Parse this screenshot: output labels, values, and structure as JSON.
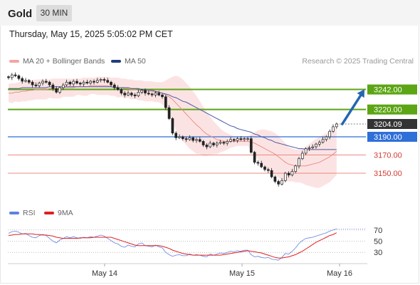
{
  "header": {
    "symbol": "Gold",
    "interval": "30 MIN",
    "datetime": "Thursday, May 15, 2025 5:05:02 PM CET"
  },
  "legend": {
    "ma20": "MA 20 + Bollinger Bands",
    "ma50": "MA 50",
    "credit": "Research © 2025 Trading Central",
    "rsi": "RSI",
    "rsi_ma": "9MA"
  },
  "colors": {
    "up_candle": "#ffffff",
    "down_candle": "#222222",
    "ma20": "#e8908a",
    "bollinger_fill": "#fbdcdc",
    "ma50": "#4a5aa8",
    "resistance": "#5ca514",
    "support": "#e87c72",
    "pivot": "#2f6fd8",
    "last_price": "#333333",
    "arrow": "#2466b0",
    "rsi": "#6080e0",
    "rsi_ma": "#e02020"
  },
  "chart_data": [
    {
      "type": "candlestick",
      "ylim": [
        3118,
        3262
      ],
      "x_tick_labels": [
        "May 14",
        "May 15",
        "May 16"
      ],
      "last_price": 3204.09,
      "levels": [
        {
          "label": "3242.00",
          "value": 3242.0,
          "kind": "resistance"
        },
        {
          "label": "3220.00",
          "value": 3220.0,
          "kind": "resistance"
        },
        {
          "label": "3204.09",
          "value": 3204.09,
          "kind": "last"
        },
        {
          "label": "3190.00",
          "value": 3190.0,
          "kind": "pivot"
        },
        {
          "label": "3170.00",
          "value": 3170.0,
          "kind": "support"
        },
        {
          "label": "3150.00",
          "value": 3150.0,
          "kind": "support"
        }
      ],
      "forecast_arrow": {
        "from": 3204,
        "to": 3242
      },
      "closes": [
        3255,
        3258,
        3257,
        3254,
        3251,
        3252,
        3250,
        3247,
        3246,
        3249,
        3251,
        3250,
        3247,
        3243,
        3239,
        3244,
        3247,
        3250,
        3248,
        3251,
        3249,
        3248,
        3250,
        3249,
        3251,
        3250,
        3252,
        3253,
        3252,
        3250,
        3247,
        3244,
        3242,
        3238,
        3236,
        3238,
        3236,
        3235,
        3239,
        3241,
        3238,
        3237,
        3236,
        3238,
        3236,
        3234,
        3222,
        3210,
        3194,
        3189,
        3190,
        3188,
        3187,
        3189,
        3186,
        3187,
        3185,
        3181,
        3179,
        3183,
        3181,
        3183,
        3184,
        3183,
        3185,
        3187,
        3186,
        3188,
        3187,
        3188,
        3188,
        3173,
        3162,
        3161,
        3157,
        3154,
        3153,
        3146,
        3141,
        3138,
        3142,
        3150,
        3148,
        3152,
        3158,
        3166,
        3172,
        3177,
        3178,
        3179,
        3182,
        3184,
        3187,
        3190,
        3196,
        3201,
        3204.09
      ],
      "ma20": [
        3238,
        3238,
        3239,
        3239,
        3240,
        3240,
        3241,
        3241,
        3242,
        3242,
        3242,
        3242,
        3243,
        3243,
        3243,
        3243,
        3244,
        3244,
        3244,
        3244,
        3245,
        3245,
        3245,
        3245,
        3246,
        3246,
        3246,
        3246,
        3246,
        3246,
        3245,
        3245,
        3244,
        3244,
        3243,
        3243,
        3242,
        3242,
        3241,
        3241,
        3240,
        3240,
        3240,
        3239,
        3239,
        3238,
        3236,
        3234,
        3231,
        3227,
        3223,
        3219,
        3215,
        3211,
        3207,
        3203,
        3200,
        3196,
        3193,
        3191,
        3189,
        3187,
        3186,
        3185,
        3185,
        3185,
        3185,
        3185,
        3185,
        3185,
        3185,
        3184,
        3183,
        3181,
        3179,
        3177,
        3175,
        3173,
        3171,
        3168,
        3165,
        3162,
        3160,
        3159,
        3158,
        3158,
        3158,
        3158,
        3159,
        3160,
        3161,
        3162,
        3164,
        3166,
        3168,
        3171,
        3174
      ],
      "bb_upper": [
        3248,
        3249,
        3249,
        3250,
        3251,
        3251,
        3252,
        3252,
        3253,
        3253,
        3253,
        3253,
        3253,
        3254,
        3254,
        3254,
        3254,
        3254,
        3254,
        3254,
        3254,
        3254,
        3255,
        3255,
        3255,
        3255,
        3256,
        3256,
        3256,
        3256,
        3255,
        3255,
        3255,
        3254,
        3254,
        3253,
        3253,
        3252,
        3252,
        3252,
        3251,
        3251,
        3251,
        3250,
        3250,
        3250,
        3252,
        3254,
        3256,
        3257,
        3256,
        3253,
        3249,
        3245,
        3240,
        3235,
        3229,
        3223,
        3217,
        3212,
        3207,
        3203,
        3199,
        3196,
        3194,
        3192,
        3191,
        3190,
        3190,
        3190,
        3190,
        3193,
        3195,
        3197,
        3198,
        3198,
        3197,
        3196,
        3194,
        3191,
        3187,
        3183,
        3179,
        3177,
        3176,
        3176,
        3177,
        3179,
        3182,
        3185,
        3188,
        3190,
        3192,
        3194,
        3196,
        3198,
        3200
      ],
      "bb_lower": [
        3228,
        3227,
        3229,
        3228,
        3229,
        3229,
        3230,
        3230,
        3231,
        3231,
        3231,
        3231,
        3233,
        3232,
        3232,
        3232,
        3234,
        3234,
        3234,
        3234,
        3236,
        3236,
        3235,
        3235,
        3237,
        3237,
        3236,
        3236,
        3236,
        3236,
        3235,
        3235,
        3233,
        3234,
        3232,
        3233,
        3231,
        3232,
        3230,
        3230,
        3229,
        3229,
        3229,
        3228,
        3228,
        3226,
        3220,
        3214,
        3206,
        3197,
        3190,
        3185,
        3181,
        3177,
        3174,
        3171,
        3171,
        3169,
        3169,
        3170,
        3171,
        3171,
        3173,
        3174,
        3176,
        3178,
        3179,
        3180,
        3180,
        3180,
        3180,
        3175,
        3171,
        3165,
        3160,
        3156,
        3153,
        3150,
        3148,
        3145,
        3143,
        3141,
        3141,
        3141,
        3140,
        3140,
        3139,
        3137,
        3136,
        3135,
        3134,
        3134,
        3136,
        3138,
        3140,
        3144,
        3148
      ],
      "ma50": [
        3243,
        3243,
        3243,
        3243,
        3244,
        3244,
        3244,
        3244,
        3244,
        3244,
        3244,
        3244,
        3245,
        3245,
        3245,
        3245,
        3245,
        3245,
        3245,
        3245,
        3245,
        3245,
        3245,
        3245,
        3245,
        3245,
        3245,
        3245,
        3245,
        3245,
        3245,
        3244,
        3244,
        3244,
        3244,
        3244,
        3243,
        3243,
        3243,
        3242,
        3242,
        3241,
        3241,
        3240,
        3239,
        3238,
        3237,
        3236,
        3234,
        3233,
        3231,
        3229,
        3228,
        3226,
        3224,
        3222,
        3220,
        3218,
        3216,
        3214,
        3212,
        3210,
        3208,
        3206,
        3204,
        3202,
        3201,
        3199,
        3198,
        3197,
        3196,
        3195,
        3193,
        3192,
        3190,
        3189,
        3187,
        3186,
        3184,
        3183,
        3182,
        3181,
        3180,
        3179,
        3178,
        3177,
        3177,
        3176,
        3176,
        3176,
        3176,
        3176,
        3176,
        3176,
        3176,
        3176,
        3176
      ]
    },
    {
      "type": "line",
      "ylim": [
        15,
        85
      ],
      "tick_labels": [
        "70",
        "50",
        "30"
      ],
      "tick_values": [
        70,
        50,
        30
      ],
      "series": [
        {
          "name": "RSI",
          "values": [
            64,
            67,
            68,
            66,
            63,
            64,
            60,
            57,
            56,
            60,
            62,
            60,
            55,
            50,
            47,
            52,
            55,
            58,
            56,
            58,
            56,
            55,
            57,
            56,
            58,
            57,
            59,
            61,
            59,
            55,
            51,
            47,
            45,
            41,
            39,
            43,
            41,
            40,
            45,
            47,
            42,
            41,
            40,
            43,
            40,
            38,
            30,
            26,
            23,
            25,
            26,
            24,
            24,
            27,
            25,
            26,
            25,
            23,
            22,
            27,
            25,
            27,
            29,
            28,
            30,
            32,
            31,
            33,
            32,
            34,
            34,
            26,
            22,
            23,
            21,
            20,
            21,
            18,
            17,
            16,
            21,
            28,
            27,
            32,
            38,
            46,
            51,
            55,
            56,
            57,
            59,
            61,
            63,
            65,
            68,
            70,
            72
          ]
        },
        {
          "name": "9MA",
          "values": [
            60,
            61,
            62,
            62,
            63,
            63,
            63,
            63,
            62,
            62,
            61,
            61,
            60,
            59,
            57,
            56,
            55,
            55,
            55,
            55,
            55,
            56,
            56,
            56,
            56,
            57,
            57,
            57,
            57,
            57,
            57,
            55,
            53,
            51,
            49,
            47,
            45,
            43,
            42,
            42,
            42,
            42,
            42,
            42,
            42,
            41,
            39,
            37,
            34,
            32,
            30,
            28,
            27,
            26,
            25,
            25,
            25,
            25,
            25,
            25,
            25,
            25,
            25,
            26,
            27,
            28,
            29,
            30,
            31,
            32,
            33,
            32,
            31,
            30,
            29,
            27,
            25,
            23,
            21,
            20,
            20,
            21,
            22,
            24,
            26,
            29,
            32,
            36,
            40,
            44,
            48,
            51,
            54,
            57,
            60,
            62,
            65
          ]
        }
      ]
    }
  ]
}
